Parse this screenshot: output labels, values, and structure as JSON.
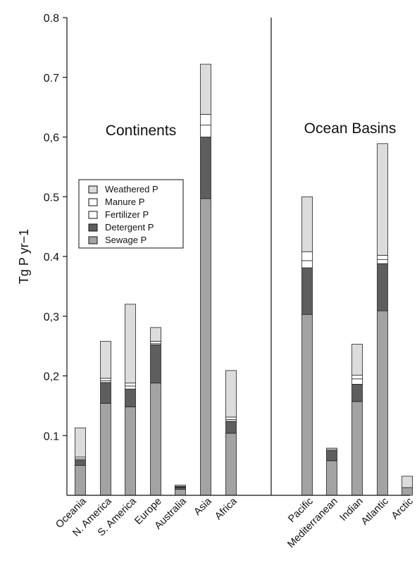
{
  "chart_data": {
    "type": "bar",
    "stacked": true,
    "ylabel": "Tg P yr−1",
    "ylim": [
      0,
      0.8
    ],
    "yticks": [
      "0.1",
      "0,2",
      "0,3",
      "0.4",
      "0.5",
      "0,6",
      "0.7",
      "0.8"
    ],
    "ytick_values": [
      0.1,
      0.2,
      0.3,
      0.4,
      0.5,
      0.6,
      0.7,
      0.8
    ],
    "groups": [
      {
        "label": "Continents",
        "categories": [
          "Oceania",
          "N. America",
          "S. America",
          "Europe",
          "Australia",
          "Asia",
          "Africa"
        ]
      },
      {
        "label": "Ocean Basins",
        "categories": [
          "Pacific",
          "Mediterranean",
          "Indian",
          "Atlantic",
          "Arctic"
        ]
      }
    ],
    "categories": [
      "Oceania",
      "N. America",
      "S. America",
      "Europe",
      "Australia",
      "Asia",
      "Africa",
      "Pacific",
      "Mediterranean",
      "Indian",
      "Atlantic",
      "Arctic"
    ],
    "legend": [
      "Weathered P",
      "Manure P",
      "Fertilizer P",
      "Detergent P",
      "Sewage P"
    ],
    "series": [
      {
        "name": "Sewage P",
        "color": "#a3a3a3",
        "values": [
          0.05,
          0.154,
          0.148,
          0.188,
          0.01,
          0.497,
          0.104,
          0.303,
          0.058,
          0.157,
          0.309,
          0.013
        ]
      },
      {
        "name": "Detergent P",
        "color": "#5e5e5e",
        "values": [
          0.009,
          0.035,
          0.03,
          0.064,
          0.003,
          0.103,
          0.02,
          0.078,
          0.017,
          0.029,
          0.079,
          0.0
        ]
      },
      {
        "name": "Fertilizer P",
        "color": "#ffffff",
        "values": [
          0.002,
          0.003,
          0.005,
          0.002,
          0.001,
          0.02,
          0.003,
          0.012,
          0.002,
          0.009,
          0.007,
          0.0
        ]
      },
      {
        "name": "Manure P",
        "color": "#ffffff",
        "values": [
          0.003,
          0.004,
          0.005,
          0.004,
          0.001,
          0.018,
          0.004,
          0.015,
          0.002,
          0.006,
          0.007,
          0.0
        ]
      },
      {
        "name": "Weathered P",
        "color": "#dcdcdc",
        "values": [
          0.049,
          0.062,
          0.132,
          0.023,
          0.002,
          0.084,
          0.078,
          0.092,
          0.0,
          0.052,
          0.187,
          0.019
        ]
      }
    ]
  }
}
